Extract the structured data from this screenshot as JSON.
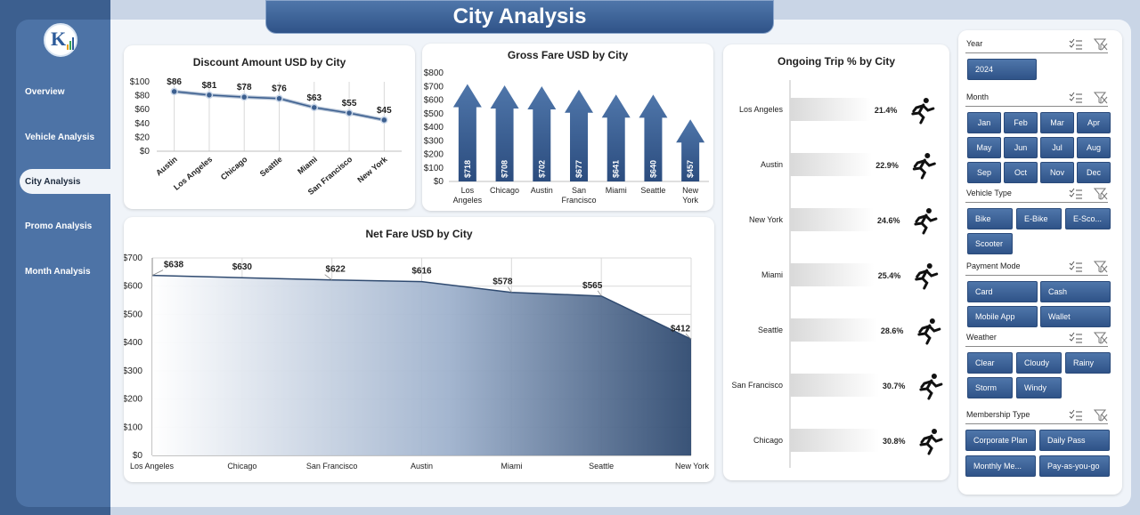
{
  "page": {
    "title": "City Analysis"
  },
  "logo": {
    "text": "K"
  },
  "nav": [
    {
      "label": "Overview",
      "active": false
    },
    {
      "label": "Vehicle Analysis",
      "active": false
    },
    {
      "label": "City Analysis",
      "active": true
    },
    {
      "label": "Promo Analysis",
      "active": false
    },
    {
      "label": "Month Analysis",
      "active": false
    }
  ],
  "colors": {
    "primary": "#2f5388",
    "primary_light": "#4f76aa",
    "accent_line": "#3c5f8f",
    "background": "#c9d5e6"
  },
  "chart_data": [
    {
      "id": "discount",
      "type": "line",
      "title": "Discount Amount USD by City",
      "categories": [
        "Austin",
        "Los Angeles",
        "Chicago",
        "Seattle",
        "Miami",
        "San Francisco",
        "New York"
      ],
      "values": [
        86,
        81,
        78,
        76,
        63,
        55,
        45
      ],
      "data_labels": [
        "$86",
        "$81",
        "$78",
        "$76",
        "$63",
        "$55",
        "$45"
      ],
      "y_ticks": [
        "$0",
        "$20",
        "$40",
        "$60",
        "$80",
        "$100"
      ],
      "ylim": [
        0,
        100
      ],
      "grid": "vertical"
    },
    {
      "id": "gross",
      "type": "bar",
      "title": "Gross Fare USD by City",
      "categories": [
        "Los Angeles",
        "Chicago",
        "Austin",
        "San Francisco",
        "Miami",
        "Seattle",
        "New York"
      ],
      "values": [
        718,
        708,
        702,
        677,
        641,
        640,
        457
      ],
      "data_labels": [
        "$718",
        "$708",
        "$702",
        "$677",
        "$641",
        "$640",
        "$457"
      ],
      "y_ticks": [
        "$0",
        "$100",
        "$200",
        "$300",
        "$400",
        "$500",
        "$600",
        "$700",
        "$800"
      ],
      "ylim": [
        0,
        800
      ]
    },
    {
      "id": "ongoing",
      "type": "bar",
      "orientation": "horizontal",
      "title": "Ongoing Trip % by City",
      "categories": [
        "Los Angeles",
        "Austin",
        "New York",
        "Miami",
        "Seattle",
        "San Francisco",
        "Chicago"
      ],
      "values": [
        21.4,
        22.9,
        24.6,
        25.4,
        28.6,
        30.7,
        30.8
      ],
      "data_labels": [
        "21.4%",
        "22.9%",
        "24.6%",
        "25.4%",
        "28.6%",
        "30.7%",
        "30.8%"
      ],
      "icon": "runner-icon"
    },
    {
      "id": "net",
      "type": "area",
      "title": "Net Fare USD by City",
      "categories": [
        "Los Angeles",
        "Chicago",
        "San Francisco",
        "Austin",
        "Miami",
        "Seattle",
        "New York"
      ],
      "values": [
        638,
        630,
        622,
        616,
        578,
        565,
        412
      ],
      "data_labels": [
        "$638",
        "$630",
        "$622",
        "$616",
        "$578",
        "$565",
        "$412"
      ],
      "y_ticks": [
        "$0",
        "$100",
        "$200",
        "$300",
        "$400",
        "$500",
        "$600",
        "$700"
      ],
      "ylim": [
        0,
        700
      ],
      "grid": "both"
    }
  ],
  "filters": [
    {
      "title": "Year",
      "items": [
        "2024"
      ]
    },
    {
      "title": "Month",
      "items": [
        "Jan",
        "Feb",
        "Mar",
        "Apr",
        "May",
        "Jun",
        "Jul",
        "Aug",
        "Sep",
        "Oct",
        "Nov",
        "Dec"
      ]
    },
    {
      "title": "Vehicle Type",
      "items": [
        "Bike",
        "E-Bike",
        "E-Sco...",
        "Scooter"
      ]
    },
    {
      "title": "Payment Mode",
      "items": [
        "Card",
        "Cash",
        "Mobile App",
        "Wallet"
      ]
    },
    {
      "title": "Weather",
      "items": [
        "Clear",
        "Cloudy",
        "Rainy",
        "Storm",
        "Windy"
      ]
    },
    {
      "title": "Membership Type",
      "items": [
        "Corporate Plan",
        "Daily Pass",
        "Monthly Me...",
        "Pay-as-you-go"
      ]
    }
  ]
}
